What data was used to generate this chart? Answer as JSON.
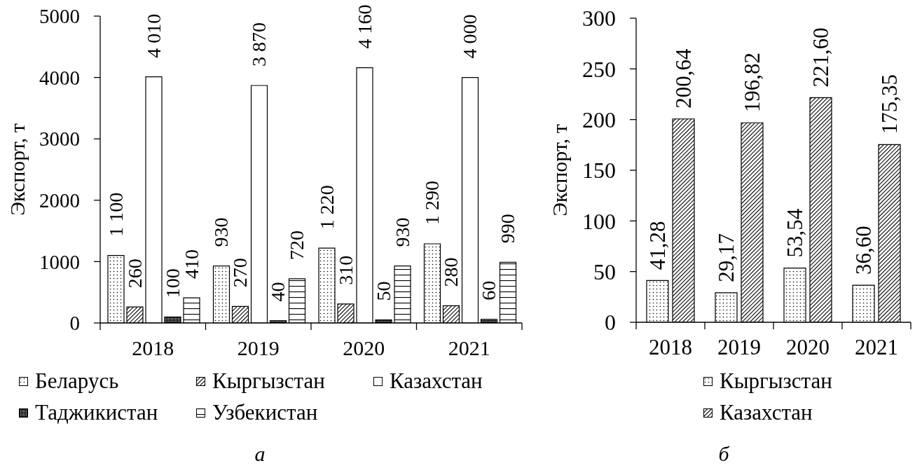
{
  "chart_data": [
    {
      "type": "bar",
      "ylabel": "Экспорт, т",
      "categories": [
        "2018",
        "2019",
        "2020",
        "2021"
      ],
      "series": [
        {
          "name": "Беларусь",
          "color": "#000000",
          "values": [
            1100,
            930,
            1220,
            1290
          ],
          "value_labels": [
            "1 100",
            "930",
            "1 220",
            "1 290"
          ]
        },
        {
          "name": "Кыргызстан",
          "color": "#000000",
          "values": [
            260,
            270,
            310,
            280
          ],
          "value_labels": [
            "260",
            "270",
            "310",
            "280"
          ]
        },
        {
          "name": "Казахстан",
          "color": "#ffffff",
          "values": [
            4010,
            3870,
            4160,
            4000
          ],
          "value_labels": [
            "4 010",
            "3 870",
            "4 160",
            "4 000"
          ]
        },
        {
          "name": "Таджикистан",
          "color": "#000000",
          "values": [
            100,
            40,
            50,
            60
          ],
          "value_labels": [
            "100",
            "40",
            "50",
            "60"
          ]
        },
        {
          "name": "Узбекистан",
          "color": "#000000",
          "values": [
            410,
            720,
            930,
            990
          ],
          "value_labels": [
            "410",
            "720",
            "930",
            "990"
          ]
        }
      ],
      "ylim": [
        0,
        5000
      ],
      "yticks": [
        0,
        1000,
        2000,
        3000,
        4000,
        5000
      ],
      "legend": "bottom",
      "annotations": [
        "а"
      ]
    },
    {
      "type": "bar",
      "ylabel": "Экспорт, т",
      "categories": [
        "2018",
        "2019",
        "2020",
        "2021"
      ],
      "series": [
        {
          "name": "Кыргызстан",
          "color": "#000000",
          "values": [
            41.28,
            29.17,
            53.54,
            36.6
          ],
          "value_labels": [
            "41,28",
            "29,17",
            "53,54",
            "36,60"
          ]
        },
        {
          "name": "Казахстан",
          "color": "#000000",
          "values": [
            200.64,
            196.82,
            221.6,
            175.35
          ],
          "value_labels": [
            "200,64",
            "196,82",
            "221,60",
            "175,35"
          ]
        }
      ],
      "ylim": [
        0,
        300
      ],
      "yticks": [
        0,
        50,
        100,
        150,
        200,
        250,
        300
      ],
      "legend": "bottom",
      "annotations": [
        "б"
      ]
    }
  ]
}
